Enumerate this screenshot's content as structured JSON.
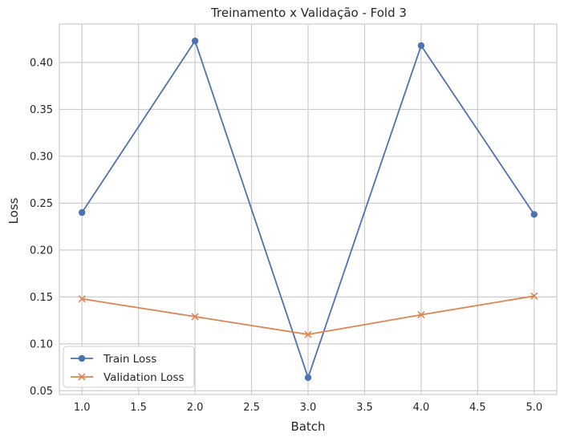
{
  "chart_data": {
    "type": "line",
    "title": "Treinamento x Validação - Fold 3",
    "xlabel": "Batch",
    "ylabel": "Loss",
    "x": [
      1,
      2,
      3,
      4,
      5
    ],
    "xlim": [
      0.8,
      5.2
    ],
    "ylim": [
      0.046,
      0.441
    ],
    "xticks": [
      1.0,
      1.5,
      2.0,
      2.5,
      3.0,
      3.5,
      4.0,
      4.5,
      5.0
    ],
    "xtick_labels": [
      "1.0",
      "1.5",
      "2.0",
      "2.5",
      "3.0",
      "3.5",
      "4.0",
      "4.5",
      "5.0"
    ],
    "yticks": [
      0.05,
      0.1,
      0.15,
      0.2,
      0.25,
      0.3,
      0.35,
      0.4
    ],
    "ytick_labels": [
      "0.05",
      "0.10",
      "0.15",
      "0.20",
      "0.25",
      "0.30",
      "0.35",
      "0.40"
    ],
    "grid": true,
    "legend_position": "lower-left",
    "series": [
      {
        "name": "Train Loss",
        "marker": "circle",
        "color": "#4c72b0",
        "values": [
          0.24,
          0.423,
          0.064,
          0.418,
          0.238
        ]
      },
      {
        "name": "Validation Loss",
        "marker": "x",
        "color": "#dd8452",
        "values": [
          0.148,
          0.129,
          0.11,
          0.131,
          0.151
        ]
      }
    ]
  }
}
